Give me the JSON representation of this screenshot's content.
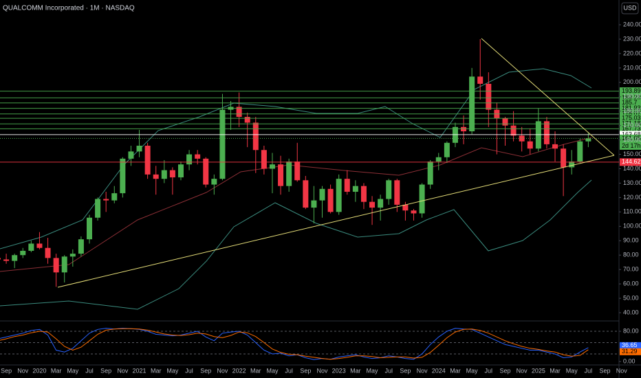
{
  "chart_data": {
    "type": "candlestick",
    "title": "QUALCOMM Incorporated · 1M · NASDAQ",
    "currency": "USD",
    "up_color": "#4caf50",
    "down_color": "#f23645",
    "categories": [
      null,
      "Sep",
      null,
      "Nov",
      null,
      "2020",
      null,
      "Mar",
      null,
      "May",
      null,
      "Jul",
      null,
      "Sep",
      null,
      "Nov",
      null,
      "2021",
      null,
      "Mar",
      null,
      "May",
      null,
      "Jul",
      null,
      "Sep",
      null,
      "Nov",
      null,
      "2022",
      null,
      "Mar",
      null,
      "May",
      null,
      "Jul",
      null,
      "Sep",
      null,
      "Nov",
      null,
      "2023",
      null,
      "Mar",
      null,
      "May",
      null,
      "Jul",
      null,
      "Sep",
      null,
      "Nov",
      null,
      "2024",
      null,
      "Mar",
      null,
      "May",
      null,
      "Jul",
      null,
      "Sep",
      null,
      "Nov",
      null,
      "2025",
      null,
      "Mar",
      null,
      "May",
      null,
      "Jul",
      null,
      "Sep",
      null,
      "Nov"
    ],
    "open": [
      78,
      77,
      76,
      80,
      83,
      88,
      85,
      78,
      68,
      79,
      81,
      91,
      106,
      119,
      118,
      123,
      147,
      152,
      156,
      136,
      133,
      139,
      134,
      143,
      150,
      147,
      129,
      133,
      181,
      183,
      176,
      172,
      153,
      140,
      143,
      128,
      145,
      132,
      113,
      118,
      126,
      110,
      133,
      124,
      128,
      117,
      113,
      119,
      132,
      115,
      111,
      109,
      129,
      145,
      148,
      158,
      169,
      166,
      204,
      199,
      181,
      175,
      170,
      163,
      159,
      154,
      173,
      157,
      154,
      141,
      145,
      159,
      null,
      null,
      null,
      null
    ],
    "high": [
      80,
      81,
      81,
      85,
      90,
      96,
      92,
      81,
      80,
      84,
      93,
      108,
      120,
      124,
      128,
      148,
      156,
      167,
      158,
      142,
      146,
      141,
      145,
      153,
      153,
      148,
      136,
      192,
      187,
      193,
      179,
      176,
      156,
      151,
      149,
      147,
      158,
      135,
      128,
      128,
      129,
      136,
      139,
      132,
      130,
      121,
      122,
      133,
      133,
      117,
      112,
      130,
      146,
      151,
      159,
      172,
      177,
      210,
      230,
      207,
      186,
      176,
      180,
      169,
      168,
      182,
      176,
      166,
      157,
      153,
      161,
      165,
      null,
      null,
      null,
      null
    ],
    "low": [
      72,
      74,
      71,
      78,
      82,
      84,
      74,
      58,
      61,
      72,
      79,
      88,
      104,
      110,
      116,
      120,
      142,
      148,
      133,
      122,
      130,
      122,
      132,
      139,
      143,
      127,
      122,
      132,
      167,
      169,
      155,
      137,
      136,
      123,
      122,
      124,
      131,
      112,
      102,
      106,
      109,
      108,
      122,
      117,
      112,
      101,
      104,
      115,
      110,
      104,
      104,
      106,
      126,
      139,
      144,
      155,
      157,
      164,
      188,
      169,
      150,
      156,
      159,
      152,
      150,
      152,
      154,
      145,
      121,
      136,
      144,
      155,
      null,
      null,
      null,
      null
    ],
    "close": [
      77,
      76,
      80,
      83,
      88,
      85,
      78,
      68,
      79,
      81,
      91,
      106,
      119,
      118,
      123,
      147,
      152,
      156,
      136,
      133,
      139,
      134,
      143,
      150,
      147,
      129,
      133,
      181,
      183,
      176,
      172,
      153,
      140,
      143,
      128,
      145,
      132,
      113,
      118,
      126,
      110,
      133,
      124,
      128,
      117,
      113,
      119,
      132,
      115,
      111,
      109,
      129,
      145,
      148,
      158,
      169,
      166,
      204,
      199,
      181,
      175,
      170,
      163,
      159,
      154,
      173,
      157,
      154,
      141,
      145,
      159,
      161.05,
      null,
      null,
      null,
      null
    ],
    "countdown": "2d 17h",
    "ylim": [
      34.75,
      257.2
    ],
    "yticks": [
      {
        "value": 40,
        "label": "40.00"
      },
      {
        "value": 50,
        "label": "50.00"
      },
      {
        "value": 60,
        "label": "60.00"
      },
      {
        "value": 70,
        "label": "70.00"
      },
      {
        "value": 80,
        "label": "80.00"
      },
      {
        "value": 90,
        "label": "90.00"
      },
      {
        "value": 100,
        "label": "100.00"
      },
      {
        "value": 110,
        "label": "110.00"
      },
      {
        "value": 120,
        "label": "120.00"
      },
      {
        "value": 130,
        "label": "130.00"
      },
      {
        "value": 140,
        "label": "140.00"
      },
      {
        "value": 150,
        "label": "150.00"
      },
      {
        "value": 160,
        "label": "160.00"
      },
      {
        "value": 170,
        "label": "170.00"
      },
      {
        "value": 180,
        "label": "180.00"
      },
      {
        "value": 190,
        "label": "190.00"
      },
      {
        "value": 200,
        "label": "200.00"
      },
      {
        "value": 210,
        "label": "210.00"
      },
      {
        "value": 220,
        "label": "220.00"
      },
      {
        "value": 230,
        "label": "230.00"
      },
      {
        "value": 240,
        "label": "240.00"
      }
    ],
    "levels": [
      {
        "value": 193.89,
        "color": "#4caf50",
        "text_color": "#000000"
      },
      {
        "value": 189.23,
        "color": "#4caf50",
        "text_color": "#000000"
      },
      {
        "value": 185.7,
        "color": "#4caf50",
        "text_color": "#000000"
      },
      {
        "value": 181.93,
        "color": "#4caf50",
        "text_color": "#000000"
      },
      {
        "value": 178.07,
        "color": "#4caf50",
        "text_color": "#000000"
      },
      {
        "value": 175.03,
        "color": "#4caf50",
        "text_color": "#000000"
      },
      {
        "value": 171.18,
        "color": "#4caf50",
        "text_color": "#000000"
      },
      {
        "value": 167.73,
        "color": "#4caf50",
        "text_color": "#000000"
      },
      {
        "value": 163.68,
        "color": "#ffffff",
        "text_color": "#000000"
      },
      {
        "value": 144.62,
        "color": "#f23645",
        "text_color": "#ffffff"
      }
    ],
    "oscillator": {
      "ylim": [
        -7.3,
        105.5
      ],
      "yticks": [
        {
          "value": 80,
          "label": "80.00"
        },
        {
          "value": 0,
          "label": "0.00"
        }
      ],
      "bands": [
        80,
        50,
        20
      ],
      "series": [
        {
          "color": "#2962ff",
          "values": [
            60,
            65,
            70,
            75,
            82,
            85,
            70,
            30,
            25,
            35,
            55,
            75,
            85,
            88,
            86,
            88,
            87,
            85,
            80,
            72,
            70,
            68,
            70,
            75,
            80,
            65,
            55,
            75,
            78,
            80,
            70,
            50,
            30,
            20,
            22,
            15,
            18,
            10,
            5,
            8,
            6,
            12,
            15,
            18,
            12,
            8,
            10,
            15,
            12,
            8,
            6,
            20,
            45,
            65,
            80,
            88,
            86,
            85,
            75,
            65,
            55,
            45,
            40,
            35,
            30,
            30,
            25,
            20,
            10,
            12,
            25,
            36.65,
            null,
            null,
            null,
            null
          ]
        },
        {
          "color": "#ff6d00",
          "values": [
            55,
            60,
            66,
            70,
            76,
            80,
            78,
            60,
            40,
            30,
            38,
            55,
            72,
            83,
            86,
            87,
            87,
            86,
            83,
            78,
            73,
            70,
            69,
            71,
            75,
            73,
            66,
            63,
            69,
            78,
            76,
            66,
            50,
            33,
            24,
            19,
            18,
            14,
            11,
            8,
            6,
            8,
            11,
            15,
            15,
            13,
            10,
            11,
            12,
            12,
            9,
            11,
            24,
            43,
            63,
            78,
            85,
            86,
            82,
            75,
            65,
            55,
            47,
            40,
            35,
            32,
            28,
            25,
            18,
            14,
            16,
            31.29,
            null,
            null,
            null,
            null
          ]
        }
      ]
    }
  }
}
